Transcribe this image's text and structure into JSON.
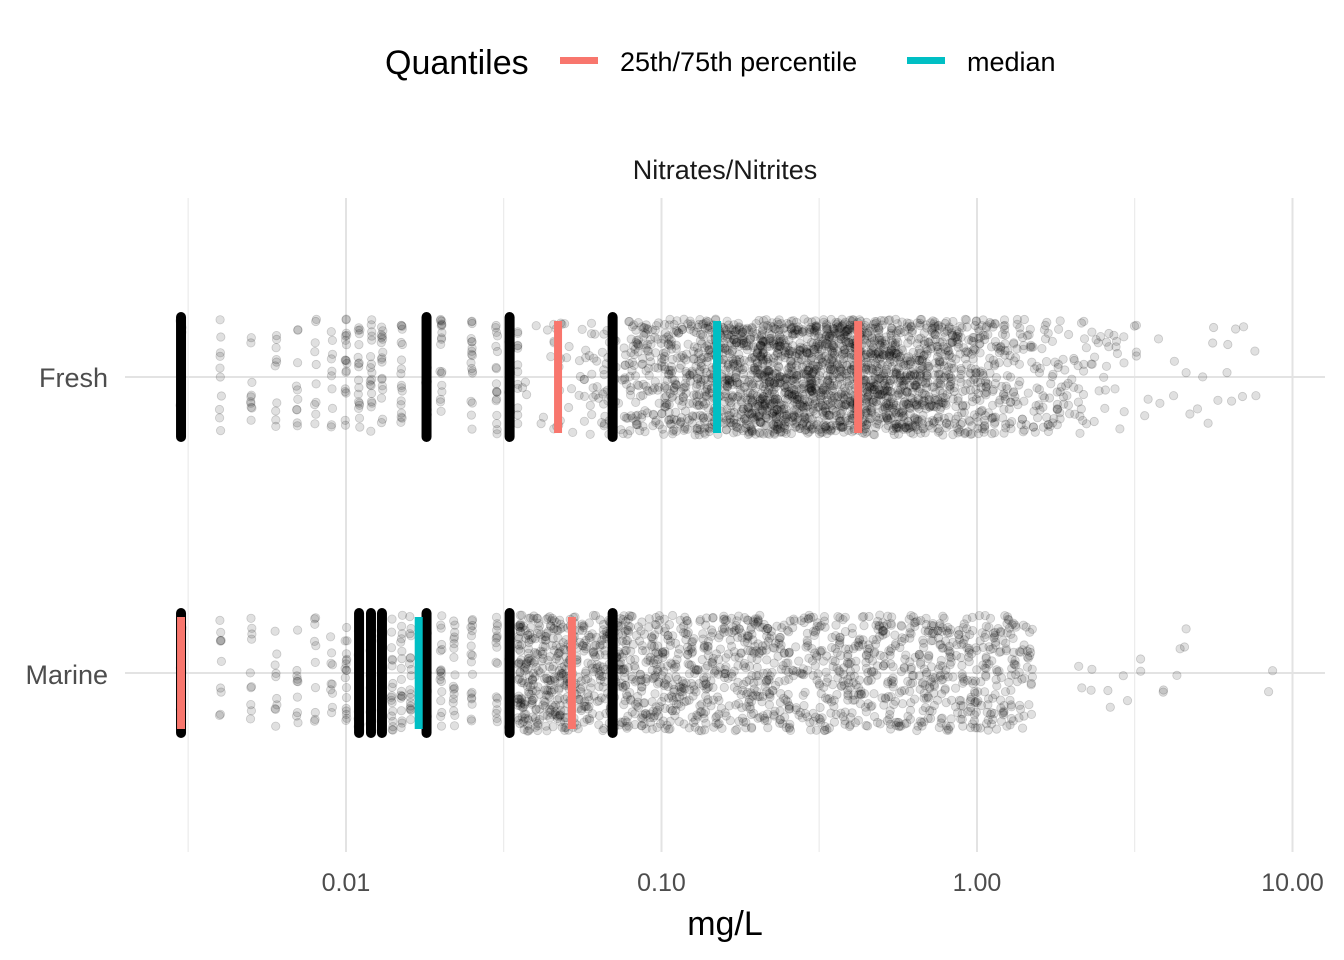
{
  "chart_data": {
    "type": "scatter",
    "subtype": "jittered strip plot with quantile markers",
    "panel_title": "Nitrates/Nitrites",
    "xlabel": "mg/L",
    "ylabel": "",
    "x_scale": "log10",
    "xlim": [
      0.0021,
      12.0
    ],
    "x_ticks": [
      0.01,
      0.1,
      1,
      10
    ],
    "x_tick_labels": [
      "0.01",
      "0.10",
      "1.00",
      "10.00"
    ],
    "x_minor_gridlines": [
      0.00316,
      0.0316,
      0.316,
      3.16
    ],
    "categories": [
      "Fresh",
      "Marine"
    ],
    "grid": true,
    "legend": {
      "title": "Quantiles",
      "position": "top",
      "entries": [
        {
          "label": "25th/75th percentile",
          "color": "#F8766D"
        },
        {
          "label": "median",
          "color": "#00BFC4"
        }
      ]
    },
    "point_color": "#000000",
    "point_opacity": 0.12,
    "series": [
      {
        "category": "Fresh",
        "percentile_25": 0.047,
        "median": 0.15,
        "percentile_75": 0.42,
        "dense_values": [
          0.003,
          0.018,
          0.033,
          0.07
        ],
        "discrete_values": [
          0.003,
          0.004,
          0.005,
          0.006,
          0.007,
          0.008,
          0.009,
          0.01,
          0.011,
          0.012,
          0.013,
          0.015,
          0.018,
          0.02,
          0.025,
          0.03,
          0.033
        ],
        "continuous_range": [
          0.035,
          3.2
        ],
        "outliers": [
          3.4,
          3.8,
          4.2,
          4.6,
          5.0,
          5.4,
          5.8,
          6.2,
          6.6,
          7.0,
          7.6
        ]
      },
      {
        "category": "Marine",
        "percentile_25": 0.003,
        "median": 0.017,
        "percentile_75": 0.052,
        "dense_values": [
          0.003,
          0.011,
          0.012,
          0.013,
          0.018,
          0.033,
          0.07
        ],
        "discrete_values": [
          0.003,
          0.004,
          0.005,
          0.006,
          0.007,
          0.008,
          0.009,
          0.01,
          0.011,
          0.012,
          0.013,
          0.014,
          0.015,
          0.016,
          0.018,
          0.02,
          0.022,
          0.025,
          0.03,
          0.033
        ],
        "continuous_range": [
          0.035,
          1.5
        ],
        "outliers": [
          2.1,
          2.3,
          2.6,
          3.0,
          3.3,
          3.9,
          4.3,
          4.6,
          8.4
        ]
      }
    ]
  }
}
